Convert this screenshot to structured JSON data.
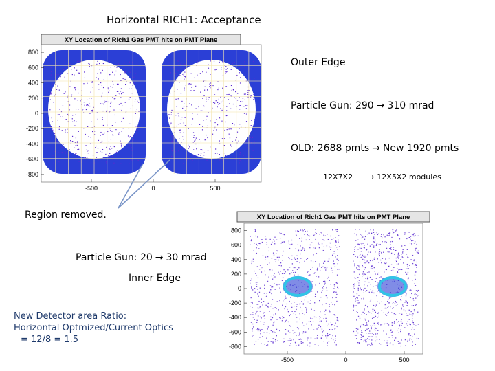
{
  "title": "Horizontal RICH1:   Acceptance",
  "notes": {
    "outer_edge": "Outer Edge",
    "gun_outer_prefix": "Particle Gun: 290",
    "gun_outer_suffix": "310 mrad",
    "old_prefix": "OLD:  2688 pmts",
    "old_suffix": "New 1920 pmts",
    "modules_old": "12X7X2",
    "modules_new": "12X5X2 modules",
    "region_removed": "Region  removed.",
    "gun_inner_prefix": "Particle Gun: 20",
    "gun_inner_suffix": "30 mrad",
    "inner_edge": "Inner  Edge",
    "ratio_line1": "New Detector area Ratio:",
    "ratio_line2": "Horizontal Optmized/Current Optics",
    "ratio_line3": "= 12/8 = 1.5"
  },
  "arrow_glyph": "→",
  "plot_top": {
    "title": "XY Location of Rich1 Gas PMT hits on PMT Plane",
    "y_ticks": [
      "800",
      "600",
      "400",
      "200",
      "0",
      "-200",
      "-400",
      "-600",
      "-800"
    ],
    "x_ticks": [
      "-500",
      "0",
      "500"
    ]
  },
  "plot_bottom": {
    "title": "XY Location of Rich1 Gas PMT hits on PMT Plane",
    "y_ticks": [
      "800",
      "600",
      "400",
      "200",
      "0",
      "-200",
      "-400",
      "-600",
      "-800"
    ],
    "x_ticks": [
      "-500",
      "0",
      "500"
    ]
  },
  "colors": {
    "hit_dense": "#2b3fd6",
    "hit_sparse": "#5a2bd0",
    "ring": "#32c4e6",
    "grid": "#f5e7b0",
    "title_bar": "#d9d9d9",
    "ratio_text": "#1f3a6b"
  }
}
